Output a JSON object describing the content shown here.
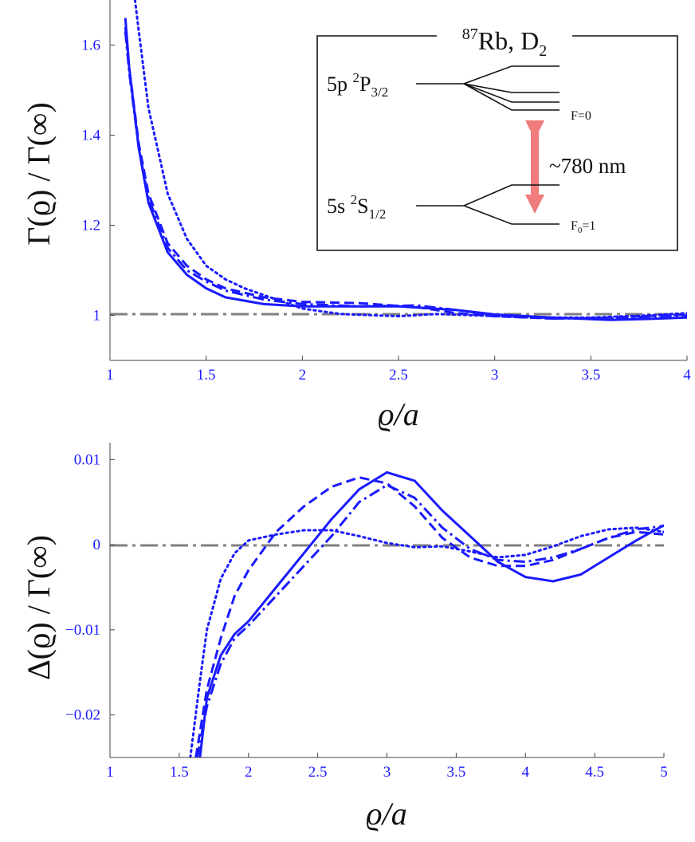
{
  "chart_data": [
    {
      "type": "line",
      "panel": "top",
      "xlabel": "ϱ/a",
      "ylabel": "Γ(ϱ) / Γ(∞)",
      "xlim": [
        1,
        4
      ],
      "ylim": [
        0.9,
        1.7
      ],
      "xticks": [
        "1",
        "1.5",
        "2",
        "2.5",
        "3",
        "3.5",
        "4"
      ],
      "yticks": [
        "1",
        "1.2",
        "1.4",
        "1.6"
      ],
      "ytick_values": [
        1.0,
        1.2,
        1.4,
        1.6
      ],
      "reference_line": {
        "y": 1.0,
        "style": "dash-dot",
        "color": "#808080"
      },
      "series_color": "#1a1aff",
      "series": [
        {
          "name": "solid",
          "dash": "solid",
          "points": [
            [
              1.08,
              1.66
            ],
            [
              1.1,
              1.55
            ],
            [
              1.15,
              1.37
            ],
            [
              1.2,
              1.25
            ],
            [
              1.3,
              1.14
            ],
            [
              1.4,
              1.09
            ],
            [
              1.5,
              1.06
            ],
            [
              1.6,
              1.04
            ],
            [
              1.8,
              1.025
            ],
            [
              2.0,
              1.02
            ],
            [
              2.3,
              1.02
            ],
            [
              2.5,
              1.02
            ],
            [
              2.8,
              1.012
            ],
            [
              3.0,
              1.002
            ],
            [
              3.3,
              0.995
            ],
            [
              3.6,
              0.99
            ],
            [
              3.8,
              0.992
            ],
            [
              4.0,
              0.995
            ]
          ]
        },
        {
          "name": "dashed",
          "dash": "dashed",
          "points": [
            [
              1.08,
              1.64
            ],
            [
              1.1,
              1.55
            ],
            [
              1.15,
              1.38
            ],
            [
              1.2,
              1.27
            ],
            [
              1.3,
              1.16
            ],
            [
              1.4,
              1.11
            ],
            [
              1.5,
              1.08
            ],
            [
              1.6,
              1.06
            ],
            [
              1.8,
              1.04
            ],
            [
              2.0,
              1.03
            ],
            [
              2.3,
              1.027
            ],
            [
              2.6,
              1.018
            ],
            [
              2.8,
              1.005
            ],
            [
              3.0,
              0.998
            ],
            [
              3.3,
              0.993
            ],
            [
              3.6,
              0.995
            ],
            [
              4.0,
              1.002
            ]
          ]
        },
        {
          "name": "dash-dot",
          "dash": "dashdot",
          "points": [
            [
              1.08,
              1.63
            ],
            [
              1.1,
              1.54
            ],
            [
              1.15,
              1.37
            ],
            [
              1.2,
              1.26
            ],
            [
              1.3,
              1.15
            ],
            [
              1.4,
              1.1
            ],
            [
              1.5,
              1.075
            ],
            [
              1.6,
              1.055
            ],
            [
              1.8,
              1.035
            ],
            [
              2.0,
              1.025
            ],
            [
              2.3,
              1.02
            ],
            [
              2.6,
              1.022
            ],
            [
              2.8,
              1.012
            ],
            [
              3.0,
              1.0
            ],
            [
              3.3,
              0.993
            ],
            [
              3.6,
              0.994
            ],
            [
              4.0,
              1.0
            ]
          ]
        },
        {
          "name": "dotted",
          "dash": "dotted",
          "points": [
            [
              1.13,
              1.7
            ],
            [
              1.15,
              1.63
            ],
            [
              1.2,
              1.46
            ],
            [
              1.3,
              1.27
            ],
            [
              1.4,
              1.17
            ],
            [
              1.5,
              1.11
            ],
            [
              1.6,
              1.08
            ],
            [
              1.7,
              1.06
            ],
            [
              1.8,
              1.045
            ],
            [
              1.9,
              1.03
            ],
            [
              2.0,
              1.015
            ],
            [
              2.2,
              1.003
            ],
            [
              2.5,
              0.998
            ],
            [
              2.7,
              1.003
            ],
            [
              2.9,
              1.0
            ],
            [
              3.2,
              0.995
            ],
            [
              3.5,
              0.995
            ],
            [
              3.8,
              1.0
            ],
            [
              4.0,
              1.005
            ]
          ]
        }
      ],
      "inset": {
        "title_sup": "87",
        "title": "Rb, D",
        "title_sub": "2",
        "upper_state": "5p ",
        "upper_sup": "2",
        "upper_main": "P",
        "upper_sub": "3/2",
        "lower_state": "5s ",
        "lower_sup": "2",
        "lower_main": "S",
        "lower_sub": "1/2",
        "upper_level_label": "F=0",
        "lower_level_main": "F",
        "lower_level_sub": "0",
        "lower_level_eq": "=1",
        "transition_label": "~780 nm",
        "arrow_color": "#f07c7c"
      }
    },
    {
      "type": "line",
      "panel": "bottom",
      "xlabel": "ϱ/a",
      "ylabel": "Δ(ϱ) / Γ(∞)",
      "xlim": [
        1,
        5
      ],
      "ylim": [
        -0.025,
        0.012
      ],
      "xticks": [
        "1",
        "1.5",
        "2",
        "2.5",
        "3",
        "3.5",
        "4",
        "4.5",
        "5"
      ],
      "yticks": [
        "0.01",
        "0",
        "−0.01",
        "−0.02"
      ],
      "ytick_values": [
        0.01,
        0.0,
        -0.01,
        -0.02
      ],
      "reference_line": {
        "y": 0.0,
        "style": "dash-dot",
        "color": "#808080"
      },
      "series_color": "#1a1aff",
      "series": [
        {
          "name": "solid",
          "dash": "solid",
          "points": [
            [
              1.65,
              -0.025
            ],
            [
              1.7,
              -0.018
            ],
            [
              1.8,
              -0.013
            ],
            [
              1.9,
              -0.0105
            ],
            [
              2.0,
              -0.009
            ],
            [
              2.2,
              -0.005
            ],
            [
              2.4,
              -0.001
            ],
            [
              2.6,
              0.003
            ],
            [
              2.8,
              0.0065
            ],
            [
              3.0,
              0.0085
            ],
            [
              3.2,
              0.0075
            ],
            [
              3.4,
              0.004
            ],
            [
              3.6,
              0.001
            ],
            [
              3.8,
              -0.002
            ],
            [
              4.0,
              -0.0038
            ],
            [
              4.2,
              -0.0043
            ],
            [
              4.4,
              -0.0035
            ],
            [
              4.6,
              -0.0015
            ],
            [
              4.8,
              0.0005
            ],
            [
              5.0,
              0.0023
            ]
          ]
        },
        {
          "name": "dashed",
          "dash": "dashed",
          "points": [
            [
              1.62,
              -0.025
            ],
            [
              1.7,
              -0.017
            ],
            [
              1.8,
              -0.011
            ],
            [
              1.9,
              -0.006
            ],
            [
              2.0,
              -0.003
            ],
            [
              2.2,
              0.0015
            ],
            [
              2.4,
              0.0045
            ],
            [
              2.6,
              0.0068
            ],
            [
              2.8,
              0.0079
            ],
            [
              3.0,
              0.0072
            ],
            [
              3.2,
              0.0045
            ],
            [
              3.4,
              0.0008
            ],
            [
              3.6,
              -0.0015
            ],
            [
              3.8,
              -0.0025
            ],
            [
              4.0,
              -0.0025
            ],
            [
              4.2,
              -0.0018
            ],
            [
              4.4,
              -0.0005
            ],
            [
              4.6,
              0.0008
            ],
            [
              4.8,
              0.0015
            ],
            [
              5.0,
              0.0012
            ]
          ]
        },
        {
          "name": "dash-dot",
          "dash": "dashdot",
          "points": [
            [
              1.63,
              -0.025
            ],
            [
              1.7,
              -0.019
            ],
            [
              1.8,
              -0.014
            ],
            [
              1.9,
              -0.011
            ],
            [
              2.0,
              -0.0095
            ],
            [
              2.2,
              -0.006
            ],
            [
              2.4,
              -0.0025
            ],
            [
              2.6,
              0.001
            ],
            [
              2.8,
              0.005
            ],
            [
              3.0,
              0.007
            ],
            [
              3.2,
              0.0055
            ],
            [
              3.4,
              0.002
            ],
            [
              3.6,
              -0.0005
            ],
            [
              3.8,
              -0.0018
            ],
            [
              4.0,
              -0.002
            ],
            [
              4.2,
              -0.0015
            ],
            [
              4.4,
              -0.0005
            ],
            [
              4.6,
              0.0008
            ],
            [
              4.8,
              0.0018
            ],
            [
              5.0,
              0.0022
            ]
          ]
        },
        {
          "name": "dotted",
          "dash": "dotted",
          "points": [
            [
              1.58,
              -0.025
            ],
            [
              1.65,
              -0.016
            ],
            [
              1.7,
              -0.01
            ],
            [
              1.8,
              -0.004
            ],
            [
              1.9,
              -0.001
            ],
            [
              2.0,
              0.0005
            ],
            [
              2.2,
              0.0012
            ],
            [
              2.4,
              0.0017
            ],
            [
              2.6,
              0.0017
            ],
            [
              2.8,
              0.001
            ],
            [
              3.0,
              0.0002
            ],
            [
              3.2,
              -0.0003
            ],
            [
              3.4,
              -0.0002
            ],
            [
              3.6,
              -0.0008
            ],
            [
              3.8,
              -0.0015
            ],
            [
              4.0,
              -0.0012
            ],
            [
              4.2,
              -0.0002
            ],
            [
              4.4,
              0.001
            ],
            [
              4.6,
              0.0018
            ],
            [
              4.8,
              0.002
            ],
            [
              5.0,
              0.0015
            ]
          ]
        }
      ]
    }
  ]
}
